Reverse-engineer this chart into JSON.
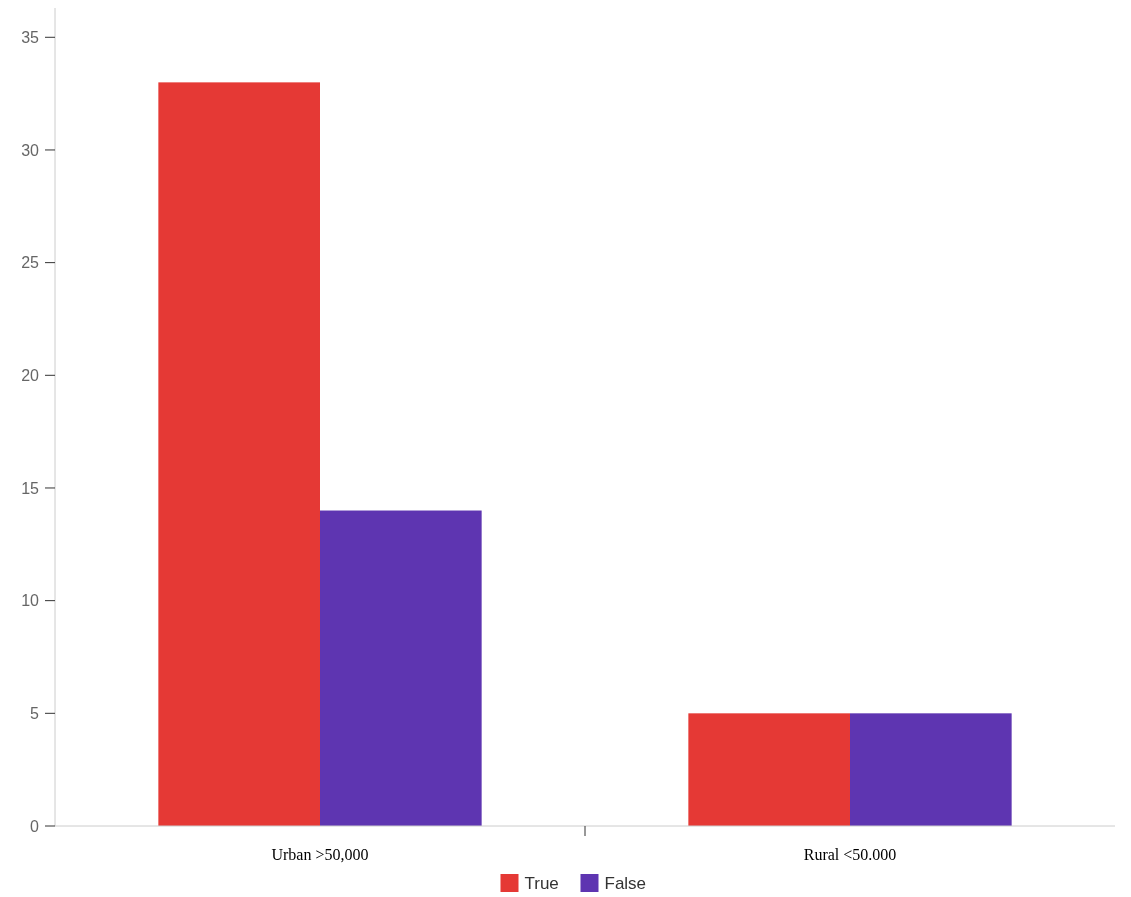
{
  "chart_data": {
    "type": "bar",
    "categories": [
      "Urban >50,000",
      "Rural <50.000"
    ],
    "series": [
      {
        "name": "True",
        "color": "#e53935",
        "values": [
          33,
          5
        ]
      },
      {
        "name": "False",
        "color": "#5e35b1",
        "values": [
          14,
          5
        ]
      }
    ],
    "ylim": [
      0,
      36.3
    ],
    "yticks": [
      0,
      5,
      10,
      15,
      20,
      25,
      30,
      35
    ],
    "grid": false,
    "legend": "bottom"
  }
}
